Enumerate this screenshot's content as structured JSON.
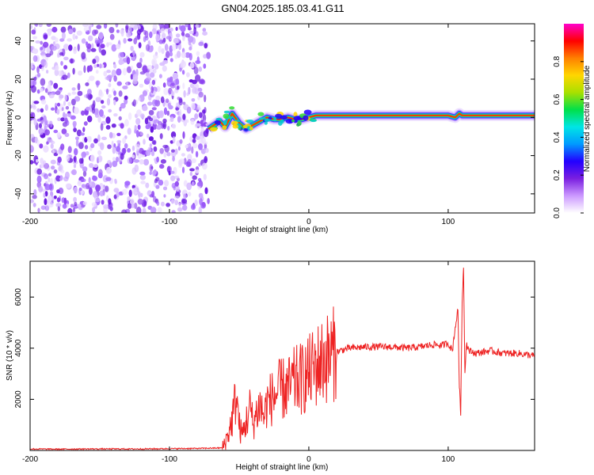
{
  "figure": {
    "title": "GN04.2025.185.03.41.G11"
  },
  "chart_data": [
    {
      "type": "heatmap",
      "xlabel": "Height of straight line (km)",
      "ylabel": "Frequency (Hz)",
      "xlim": [
        -200,
        162
      ],
      "ylim": [
        -50,
        49
      ],
      "xticks": [
        -200,
        -100,
        0,
        100
      ],
      "yticks": [
        -40,
        -20,
        0,
        20,
        40
      ],
      "grid": false,
      "colorbar": {
        "label": "Normalized spectral amplitude",
        "range": [
          0,
          1
        ],
        "ticks": [
          0.0,
          0.2,
          0.4,
          0.6,
          0.8
        ],
        "colormap": [
          "#ffffff",
          "#cc99ff",
          "#7a1fe0",
          "#2200ff",
          "#0099ff",
          "#00e5e5",
          "#00e04a",
          "#a8e000",
          "#ffd600",
          "#ff8000",
          "#ff0000",
          "#ff00cc"
        ]
      },
      "regions": [
        {
          "x_from": -200,
          "x_to": -72,
          "description_value": 0.2
        },
        {
          "x_from": -72,
          "x_to": 162,
          "line_frequency": 0,
          "peak_value": 1.0
        }
      ],
      "line_track": {
        "x": [
          -72,
          -68,
          -64,
          -60,
          -55,
          -50,
          -45,
          -40,
          -35,
          -30,
          -25,
          -20,
          -15,
          -10,
          -5,
          0,
          5,
          50,
          100,
          105,
          108,
          110,
          162
        ],
        "y": [
          -6,
          -4,
          -2,
          -5,
          2,
          -3,
          -6,
          -4,
          -2,
          0,
          -1,
          -1,
          0,
          -1,
          -1,
          0,
          1,
          1,
          1,
          0,
          2,
          1,
          1
        ]
      }
    },
    {
      "type": "line",
      "xlabel": "Height of straight line (km)",
      "ylabel": "SNR (10 * v/v)",
      "xlim": [
        -200,
        162
      ],
      "ylim": [
        0,
        7400
      ],
      "xticks": [
        -200,
        -100,
        0,
        100
      ],
      "yticks": [
        2000,
        4000,
        6000
      ],
      "grid": false,
      "color": "#ee2222",
      "series": [
        {
          "x": [
            -200,
            -180,
            -160,
            -140,
            -120,
            -100,
            -80,
            -62,
            -58,
            -55,
            -52,
            -50,
            -48,
            -45,
            -42,
            -40,
            -38,
            -35,
            -32,
            -30,
            -25,
            -20,
            -15,
            -10,
            -5,
            0,
            5,
            10,
            15,
            20,
            25,
            30,
            40,
            50,
            60,
            70,
            80,
            90,
            95,
            100,
            103,
            105,
            107,
            108,
            109,
            110,
            111,
            112,
            113,
            115,
            120,
            130,
            140,
            150,
            162
          ],
          "y": [
            60,
            50,
            60,
            60,
            60,
            70,
            80,
            100,
            600,
            1200,
            2200,
            1000,
            600,
            1100,
            1700,
            1000,
            1400,
            1800,
            1300,
            1900,
            2100,
            2400,
            2400,
            2700,
            2800,
            3000,
            3300,
            3500,
            3700,
            3850,
            3950,
            4000,
            4050,
            4050,
            4050,
            4000,
            4050,
            4150,
            4100,
            4200,
            3900,
            4800,
            5500,
            2500,
            1500,
            5800,
            7200,
            3000,
            4200,
            3900,
            3800,
            3900,
            3800,
            3800,
            3700
          ]
        }
      ]
    }
  ]
}
